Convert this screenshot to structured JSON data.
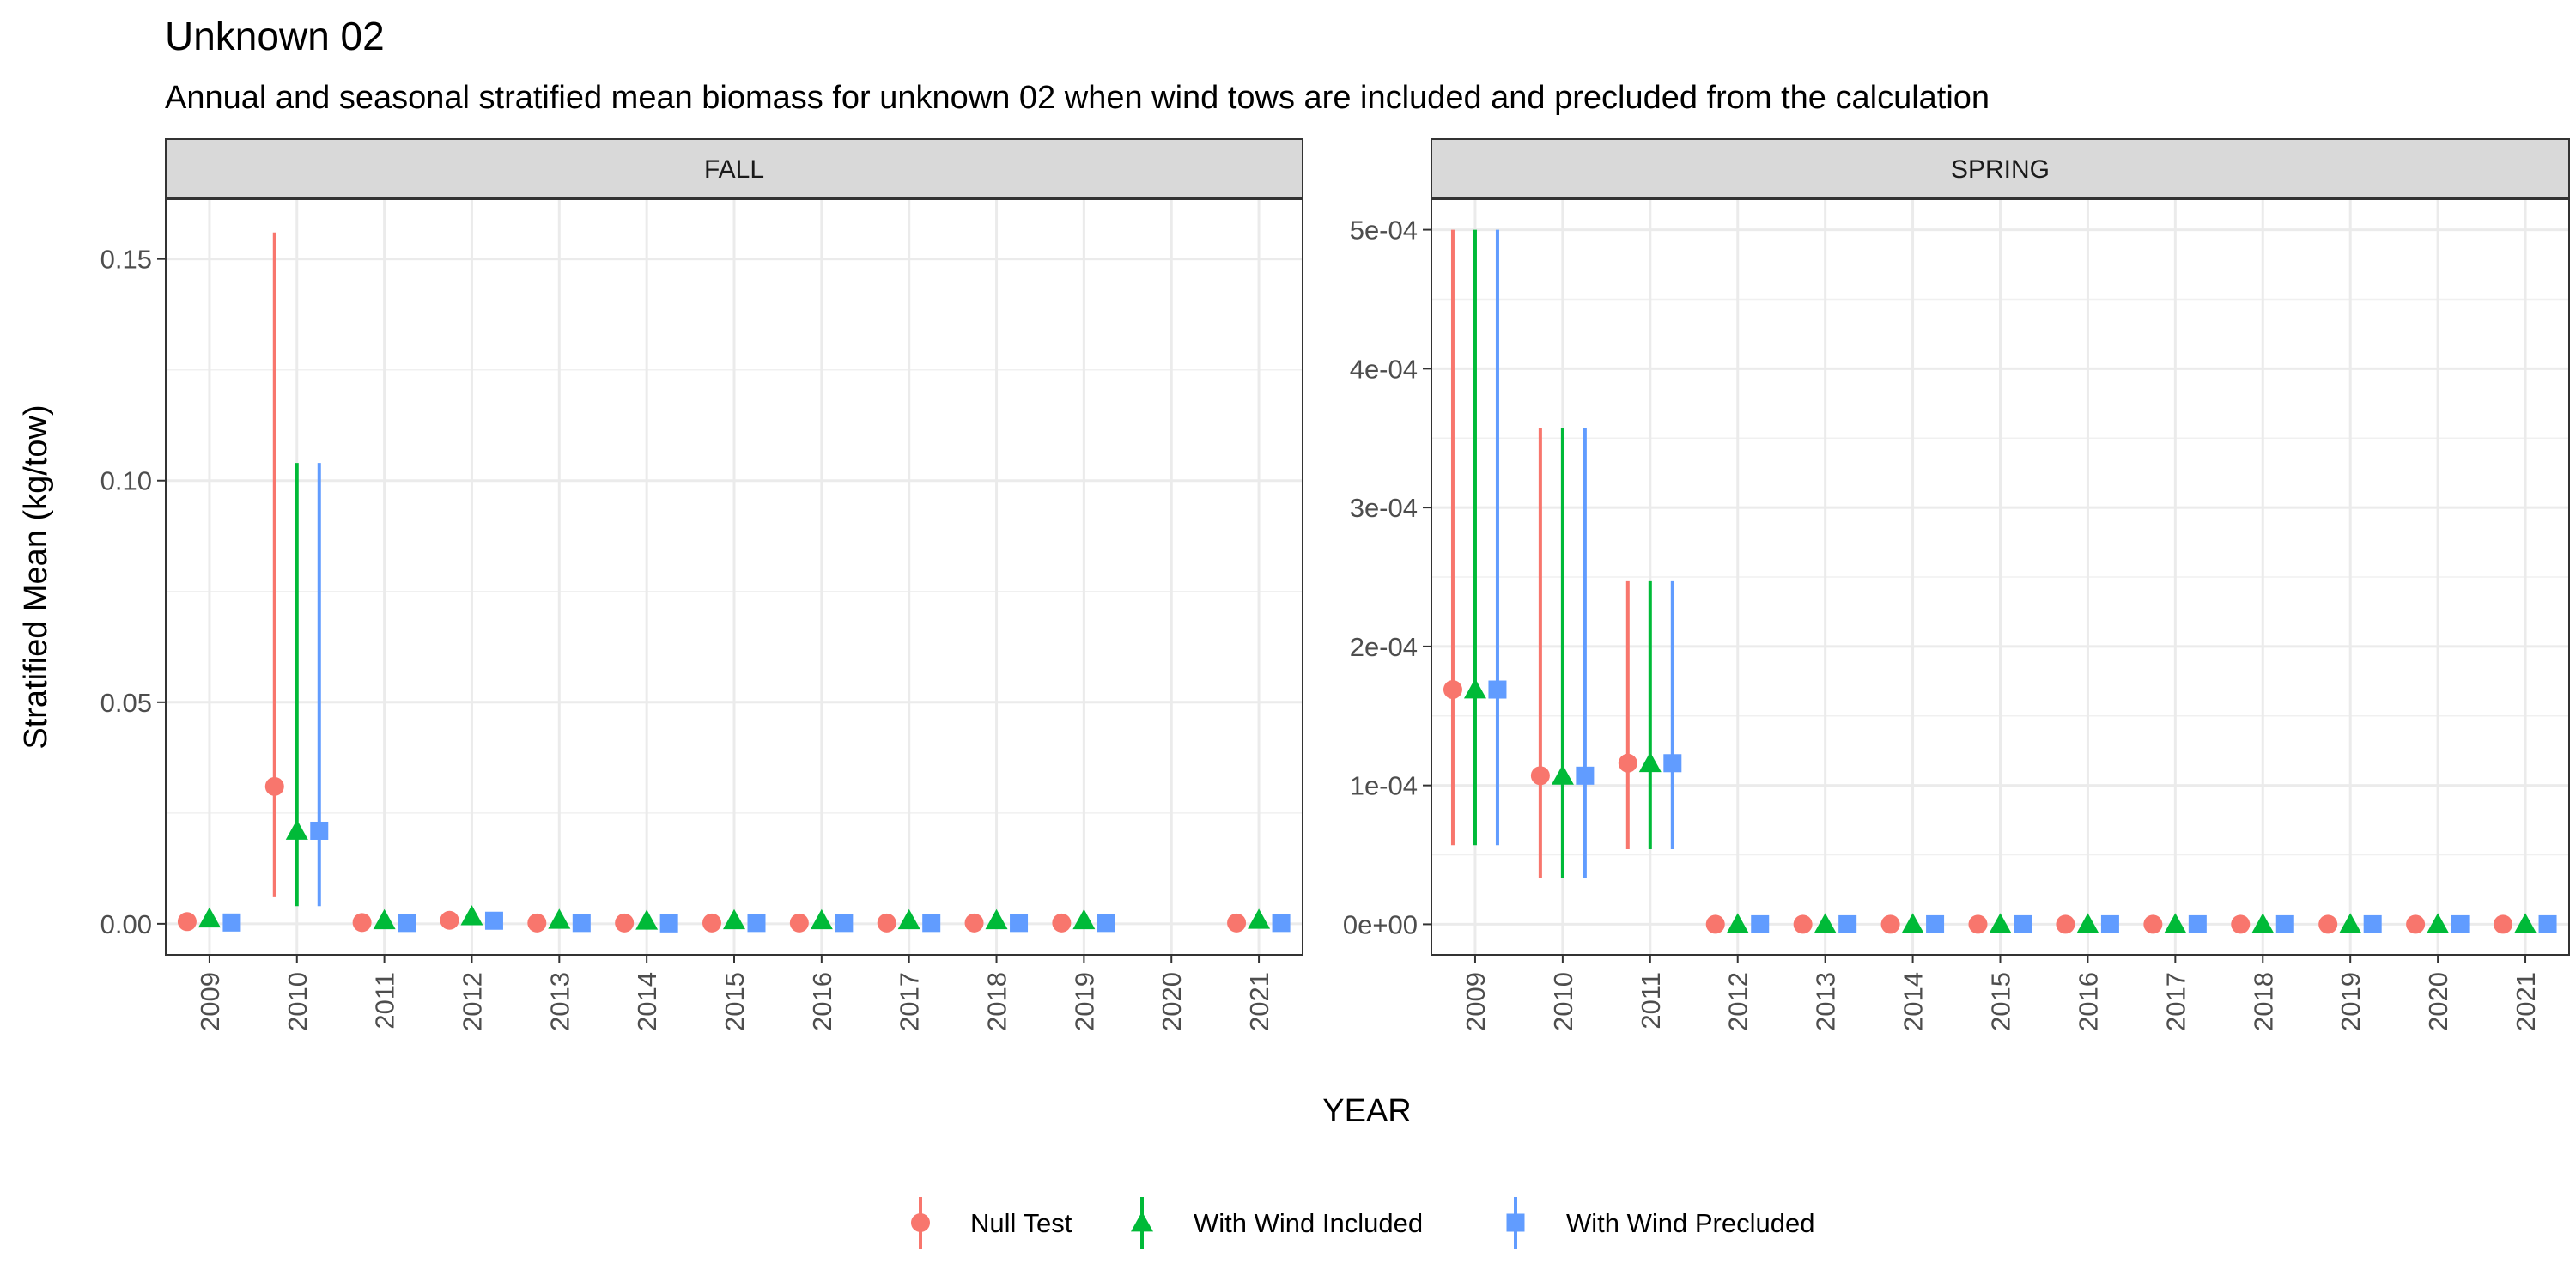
{
  "chart_data": {
    "type": "scatter",
    "title": "Unknown 02",
    "subtitle": "Annual and seasonal stratified mean biomass for unknown 02 when wind tows are included and precluded from the calculation",
    "xlabel": "YEAR",
    "ylabel": "Stratified Mean (kg/tow)",
    "legend_position": "bottom",
    "grid": true,
    "years": [
      "2009",
      "2010",
      "2011",
      "2012",
      "2013",
      "2014",
      "2015",
      "2016",
      "2017",
      "2018",
      "2019",
      "2020",
      "2021"
    ],
    "legend": [
      {
        "name": "Null Test",
        "color": "#F8766D",
        "shape": "circle"
      },
      {
        "name": "With Wind Included",
        "color": "#00BA38",
        "shape": "triangle"
      },
      {
        "name": "With Wind Precluded",
        "color": "#619CFF",
        "shape": "square"
      }
    ],
    "panels": [
      {
        "name": "FALL",
        "ylim": [
          -0.007,
          0.1635
        ],
        "y_ticks": [
          0,
          0.05,
          0.1,
          0.15
        ],
        "y_tick_labels": [
          "0.00",
          "0.05",
          "0.10",
          "0.15"
        ],
        "y_minor": [
          0.025,
          0.075,
          0.125
        ],
        "series": [
          {
            "mean": [
              0.0005,
              0.031,
              0.0003,
              0.0008,
              0.0002,
              0.0002,
              0.0002,
              0.0002,
              0.0002,
              0.0002,
              0.0002,
              null,
              0.0002
            ],
            "lower": [
              null,
              0.006,
              null,
              null,
              null,
              null,
              null,
              null,
              null,
              null,
              null,
              null,
              null
            ],
            "upper": [
              null,
              0.156,
              null,
              null,
              null,
              null,
              null,
              null,
              null,
              null,
              null,
              null,
              null
            ]
          },
          {
            "mean": [
              0.0012,
              0.021,
              0.0008,
              0.0017,
              0.0009,
              0.0007,
              0.0008,
              0.0008,
              0.0008,
              0.0008,
              0.0008,
              null,
              0.0009
            ],
            "lower": [
              null,
              0.004,
              null,
              null,
              null,
              null,
              null,
              null,
              null,
              null,
              null,
              null,
              null
            ],
            "upper": [
              null,
              0.104,
              null,
              null,
              null,
              null,
              null,
              null,
              null,
              null,
              null,
              null,
              null
            ]
          },
          {
            "mean": [
              0.0003,
              0.021,
              0.0002,
              0.0007,
              0.0002,
              0.0001,
              0.0002,
              0.0002,
              0.0002,
              0.0002,
              0.0002,
              null,
              0.0002
            ],
            "lower": [
              null,
              0.004,
              null,
              null,
              null,
              null,
              null,
              null,
              null,
              null,
              null,
              null,
              null
            ],
            "upper": [
              null,
              0.104,
              null,
              null,
              null,
              null,
              null,
              null,
              null,
              null,
              null,
              null,
              null
            ]
          }
        ]
      },
      {
        "name": "SPRING",
        "ylim": [
          -2.2e-05,
          0.000522
        ],
        "y_ticks": [
          0,
          0.0001,
          0.0002,
          0.0003,
          0.0004,
          0.0005
        ],
        "y_tick_labels": [
          "0e+00",
          "1e-04",
          "2e-04",
          "3e-04",
          "4e-04",
          "5e-04"
        ],
        "y_minor": [
          5e-05,
          0.00015,
          0.00025,
          0.00035,
          0.00045
        ],
        "series": [
          {
            "mean": [
              0.000169,
              0.000107,
              0.000116,
              0,
              0,
              0,
              0,
              0,
              0,
              0,
              0,
              0,
              0
            ],
            "lower": [
              5.7e-05,
              3.3e-05,
              5.4e-05,
              null,
              null,
              null,
              null,
              null,
              null,
              null,
              null,
              null,
              null
            ],
            "upper": [
              0.0005,
              0.000357,
              0.000247,
              null,
              null,
              null,
              null,
              null,
              null,
              null,
              null,
              null,
              null
            ]
          },
          {
            "mean": [
              0.000169,
              0.000107,
              0.000116,
              0,
              0,
              0,
              0,
              0,
              0,
              0,
              0,
              0,
              0
            ],
            "lower": [
              5.7e-05,
              3.3e-05,
              5.4e-05,
              null,
              null,
              null,
              null,
              null,
              null,
              null,
              null,
              null,
              null
            ],
            "upper": [
              0.0005,
              0.000357,
              0.000247,
              null,
              null,
              null,
              null,
              null,
              null,
              null,
              null,
              null,
              null
            ]
          },
          {
            "mean": [
              0.000169,
              0.000107,
              0.000116,
              0,
              0,
              0,
              0,
              0,
              0,
              0,
              0,
              0,
              0
            ],
            "lower": [
              5.7e-05,
              3.3e-05,
              5.4e-05,
              null,
              null,
              null,
              null,
              null,
              null,
              null,
              null,
              null,
              null
            ],
            "upper": [
              0.0005,
              0.000357,
              0.000247,
              null,
              null,
              null,
              null,
              null,
              null,
              null,
              null,
              null,
              null
            ]
          }
        ]
      }
    ]
  }
}
